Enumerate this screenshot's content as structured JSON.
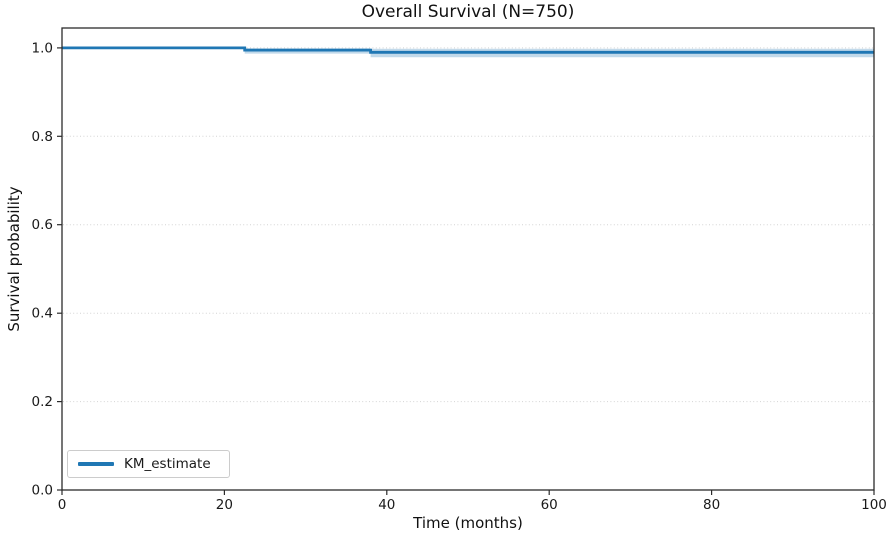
{
  "chart_data": {
    "type": "line",
    "chart_style": "kaplan-meier-step",
    "title": "Overall Survival (N=750)",
    "xlabel": "Time (months)",
    "ylabel": "Survival probability",
    "xlim": [
      0,
      100
    ],
    "ylim": [
      0,
      1.045
    ],
    "xticks": [
      0,
      20,
      40,
      60,
      80,
      100
    ],
    "xtick_labels": [
      "0",
      "20",
      "40",
      "60",
      "80",
      "100"
    ],
    "yticks": [
      0.0,
      0.2,
      0.4,
      0.6,
      0.8,
      1.0
    ],
    "ytick_labels": [
      "0.0",
      "0.2",
      "0.4",
      "0.6",
      "0.8",
      "1.0"
    ],
    "grid": {
      "axis": "y",
      "style": "dotted",
      "color": "#d4d4d4"
    },
    "legend": [
      "KM_estimate"
    ],
    "legend_position": "lower left",
    "colors": {
      "line": "#1f77b4",
      "ci_band": "rgba(31,119,180,0.28)",
      "spine": "#2b2b2b",
      "tick_text": "#1a1a1a"
    },
    "series": [
      {
        "name": "KM_estimate",
        "step_x": [
          0,
          22.5,
          38,
          100
        ],
        "survival": [
          1.0,
          0.995,
          0.99
        ],
        "ci_upper": [
          1.0,
          0.999,
          0.998
        ],
        "ci_lower": [
          1.0,
          0.987,
          0.979
        ]
      }
    ]
  }
}
